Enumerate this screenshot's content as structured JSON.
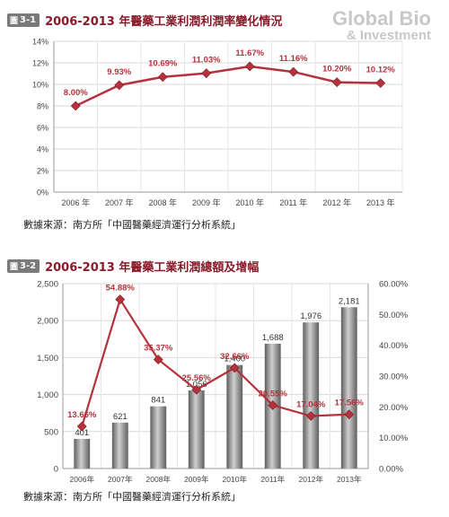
{
  "brand": {
    "line1": "Global Bio",
    "line2": "& Investment"
  },
  "figures": [
    {
      "badge_prefix": "圖",
      "badge_num": "3-1",
      "title": "2006-2013 年醫藥工業利潤利潤率變化情況",
      "source": "數據來源：南方所「中國醫藥經濟運行分析系統」"
    },
    {
      "badge_prefix": "圖",
      "badge_num": "3-2",
      "title": "2006-2013 年醫藥工業利潤總額及增幅",
      "source": "數據來源：南方所「中國醫藥經濟運行分析系統」"
    }
  ],
  "chart_data": [
    {
      "type": "line",
      "categories": [
        "2006 年",
        "2007 年",
        "2008 年",
        "2009 年",
        "2010 年",
        "2011 年",
        "2012 年",
        "2013 年"
      ],
      "values": [
        8.0,
        9.93,
        10.69,
        11.03,
        11.67,
        11.16,
        10.2,
        10.12
      ],
      "labels": [
        "8.00%",
        "9.93%",
        "10.69%",
        "11.03%",
        "11.67%",
        "11.16%",
        "10.20%",
        "10.12%"
      ],
      "ylim": [
        0,
        14
      ],
      "yticks": [
        "0%",
        "2%",
        "4%",
        "6%",
        "8%",
        "10%",
        "12%",
        "14%"
      ],
      "grid": true,
      "colors": {
        "line": "#b5323c",
        "marker": "#b5323c",
        "label": "#b5323c"
      }
    },
    {
      "type": "bar",
      "categories": [
        "2006年",
        "2007年",
        "2008年",
        "2009年",
        "2010年",
        "2011年",
        "2012年",
        "2013年"
      ],
      "series": [
        {
          "values": [
            401,
            621,
            841,
            1056,
            1400,
            1688,
            1976,
            2181
          ],
          "labels": [
            "401",
            "621",
            "841",
            "1,056",
            "1,400",
            "1,688",
            "1,976",
            "2,181"
          ],
          "axis": "left"
        },
        {
          "type": "line",
          "values": [
            13.66,
            54.88,
            35.37,
            25.56,
            32.66,
            20.55,
            17.04,
            17.56
          ],
          "labels": [
            "13.66%",
            "54.88%",
            "35.37%",
            "25.56%",
            "32.66%",
            "20.55%",
            "17.04%",
            "17.56%"
          ],
          "axis": "right"
        }
      ],
      "ylim": [
        0,
        2500
      ],
      "yticks": [
        "0",
        "500",
        "1,000",
        "1,500",
        "2,000",
        "2,500"
      ],
      "y2lim": [
        0,
        60
      ],
      "y2ticks": [
        "0.00%",
        "10.00%",
        "20.00%",
        "30.00%",
        "40.00%",
        "50.00%",
        "60.00%"
      ],
      "grid": true,
      "colors": {
        "bar_light": "#cfcfcf",
        "bar_dark": "#5f5f5f",
        "line": "#b5323c",
        "label": "#b5323c"
      }
    }
  ]
}
